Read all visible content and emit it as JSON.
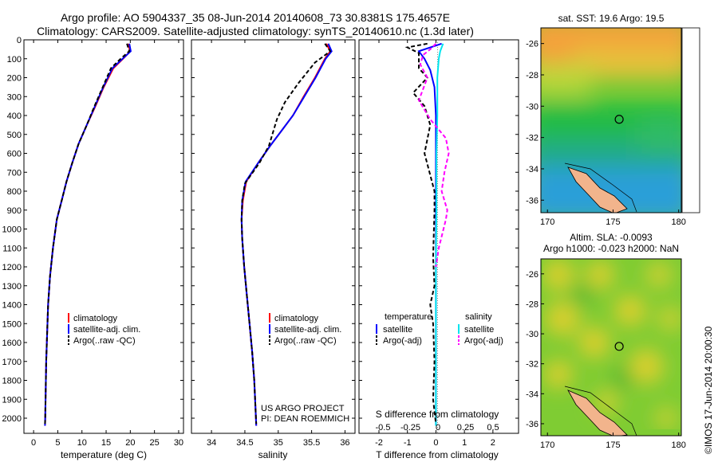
{
  "header": {
    "line1": "Argo profile: AO 5904337_35 08-Jun-2014 20140608_73 30.8381S 175.4657E",
    "line2": "Climatology: CARS2009. Satellite-adjusted climatology: synTS_20140610.nc (1.3d later)"
  },
  "chart_data": [
    {
      "type": "line",
      "name": "temperature",
      "xlabel": "temperature (deg C)",
      "ylabel": "",
      "xlim": [
        -2,
        31
      ],
      "ylim": [
        2080,
        0
      ],
      "xticks": [
        0,
        5,
        10,
        15,
        20,
        25,
        30
      ],
      "yticks": [
        0,
        100,
        200,
        300,
        400,
        500,
        600,
        700,
        800,
        900,
        1000,
        1100,
        1200,
        1300,
        1400,
        1500,
        1600,
        1700,
        1800,
        1900,
        2000
      ],
      "series": [
        {
          "name": "climatology",
          "color": "#ff0000",
          "style": "solid",
          "x": [
            19.5,
            20.0,
            18.5,
            16.5,
            14.5,
            12.8,
            11.0,
            9.3,
            8.0,
            6.8,
            5.8,
            4.8,
            4.0,
            3.4,
            3.0,
            2.8,
            2.6,
            2.5,
            2.4,
            2.35
          ],
          "y": [
            20,
            60,
            100,
            150,
            250,
            350,
            450,
            550,
            650,
            750,
            850,
            950,
            1100,
            1250,
            1400,
            1550,
            1700,
            1850,
            2000,
            2040
          ]
        },
        {
          "name": "satellite-adj. clim.",
          "color": "#0000ff",
          "style": "solid",
          "x": [
            19.8,
            20.1,
            18.4,
            16.3,
            14.4,
            12.7,
            11.0,
            9.3,
            8.0,
            6.8,
            5.8,
            4.8,
            4.0,
            3.4,
            3.0,
            2.8,
            2.6,
            2.5,
            2.4,
            2.35
          ],
          "y": [
            20,
            60,
            100,
            150,
            250,
            350,
            450,
            550,
            650,
            750,
            850,
            950,
            1100,
            1250,
            1400,
            1550,
            1700,
            1850,
            2000,
            2040
          ]
        },
        {
          "name": "Argo(..raw -QC)",
          "color": "#000000",
          "style": "dashed",
          "x": [
            19.3,
            19.8,
            18.0,
            16.0,
            14.3,
            12.6,
            11.0,
            9.3,
            8.0,
            6.8,
            5.8,
            4.8,
            4.0,
            3.4,
            3.0,
            2.8,
            2.6,
            2.5,
            2.4,
            2.35
          ],
          "y": [
            20,
            60,
            100,
            150,
            250,
            350,
            450,
            550,
            650,
            750,
            850,
            950,
            1100,
            1250,
            1400,
            1550,
            1700,
            1850,
            2000,
            2030
          ]
        }
      ],
      "legend": {
        "location": "lower-center",
        "entries": [
          "climatology",
          "satellite-adj. clim.",
          "Argo(..raw -QC)"
        ]
      }
    },
    {
      "type": "line",
      "name": "salinity",
      "xlabel": "salinity",
      "xlim": [
        33.7,
        36.15
      ],
      "ylim": [
        2080,
        0
      ],
      "xticks": [
        34,
        34.5,
        35,
        35.5,
        36
      ],
      "series": [
        {
          "name": "climatology",
          "color": "#ff0000",
          "style": "solid",
          "x": [
            35.72,
            35.78,
            35.7,
            35.55,
            35.38,
            35.22,
            35.05,
            34.88,
            34.7,
            34.52,
            34.47,
            34.45,
            34.46,
            34.49,
            34.53,
            34.57,
            34.61,
            34.64,
            34.66,
            34.67
          ],
          "y": [
            20,
            60,
            100,
            200,
            300,
            400,
            480,
            560,
            650,
            750,
            850,
            950,
            1050,
            1200,
            1350,
            1500,
            1650,
            1800,
            1950,
            2040
          ]
        },
        {
          "name": "satellite-adj. clim.",
          "color": "#0000ff",
          "style": "solid",
          "x": [
            35.75,
            35.8,
            35.71,
            35.56,
            35.39,
            35.22,
            35.05,
            34.88,
            34.7,
            34.51,
            34.46,
            34.45,
            34.46,
            34.49,
            34.53,
            34.57,
            34.61,
            34.64,
            34.66,
            34.67
          ],
          "y": [
            20,
            60,
            100,
            200,
            300,
            400,
            480,
            560,
            650,
            750,
            850,
            950,
            1050,
            1200,
            1350,
            1500,
            1650,
            1800,
            1950,
            2040
          ]
        },
        {
          "name": "Argo(..raw -QC)",
          "color": "#000000",
          "style": "dashed",
          "x": [
            35.7,
            35.78,
            35.55,
            35.3,
            35.1,
            34.98,
            34.92,
            34.86,
            34.72,
            34.5,
            34.46,
            34.45,
            34.46,
            34.49,
            34.53,
            34.57,
            34.61,
            34.64,
            34.66,
            34.67
          ],
          "y": [
            20,
            60,
            120,
            230,
            330,
            420,
            490,
            560,
            650,
            760,
            850,
            950,
            1050,
            1200,
            1350,
            1500,
            1650,
            1800,
            1950,
            2030
          ]
        }
      ],
      "legend": {
        "location": "lower-center",
        "entries": [
          "climatology",
          "satellite-adj. clim.",
          "Argo(..raw -QC)"
        ]
      },
      "annotations": [
        "US ARGO PROJECT",
        "PI: DEAN ROEMMICH"
      ]
    },
    {
      "type": "line",
      "name": "difference from climatology",
      "xlabel": "T difference from climatology",
      "xlabel_top": "S difference from climatology",
      "xlim": [
        -2.7,
        2.9
      ],
      "ylim": [
        2080,
        0
      ],
      "xticks": [
        -2,
        -1,
        0,
        1,
        2
      ],
      "xticks_top": [
        -0.5,
        -0.25,
        0,
        0.25,
        0.5
      ],
      "series": [
        {
          "name": "temperature satellite",
          "color": "#0000ff",
          "style": "solid",
          "x": [
            0.2,
            -0.6,
            -0.4,
            -0.2,
            -0.05,
            0.0,
            0.0,
            0.0,
            0.0,
            0.0
          ],
          "y": [
            20,
            60,
            100,
            160,
            250,
            400,
            600,
            900,
            1500,
            2040
          ]
        },
        {
          "name": "salinity satellite",
          "color": "#00e5ee",
          "style": "solid",
          "x": [
            0.25,
            0.15,
            0.1,
            0.05,
            0.05,
            0.02,
            0.02,
            0.0,
            0.0,
            0.0
          ],
          "y": [
            20,
            60,
            100,
            200,
            400,
            600,
            900,
            1200,
            1600,
            2040
          ]
        },
        {
          "name": "temperature Argo(-adj)",
          "color": "#000000",
          "style": "dashed",
          "x": [
            -0.3,
            -1.0,
            -0.6,
            -0.6,
            -0.3,
            -0.8,
            -0.4,
            -0.2,
            -0.4,
            -0.05,
            -0.05,
            -0.1,
            -0.05,
            -0.2,
            -0.1,
            -0.05,
            -0.1,
            0.0
          ],
          "y": [
            20,
            40,
            70,
            150,
            200,
            280,
            350,
            450,
            600,
            800,
            900,
            1150,
            1300,
            1400,
            1500,
            1700,
            1900,
            2030
          ]
        },
        {
          "name": "salinity Argo(-adj)",
          "color": "#ff00ff",
          "style": "dashed",
          "x": [
            0.0,
            -0.2,
            -0.45,
            -0.55,
            -0.3,
            -0.6,
            -0.2,
            0.35,
            0.45,
            0.3,
            0.2,
            0.4,
            0.35,
            0.1,
            0.0
          ],
          "y": [
            20,
            50,
            80,
            130,
            200,
            320,
            420,
            520,
            600,
            700,
            800,
            900,
            950,
            1100,
            1200
          ]
        }
      ],
      "legend": {
        "location": "lower-center",
        "temperature_title": "temperature",
        "salinity_title": "salinity",
        "entries": [
          "satellite",
          "Argo(-adj)",
          "satellite",
          "Argo(-adj)"
        ]
      }
    },
    {
      "type": "heatmap",
      "name": "sat SST map",
      "title": "sat. SST: 19.6 Argo: 19.5",
      "xlim": [
        169.5,
        180.2
      ],
      "ylim": [
        -36.8,
        -25
      ],
      "xticks": [
        170,
        175,
        180
      ],
      "yticks": [
        -26,
        -28,
        -30,
        -32,
        -34,
        -36
      ],
      "marker": {
        "lon": 175.4657,
        "lat": -30.8381
      }
    },
    {
      "type": "heatmap",
      "name": "SLA map",
      "title": "Altim. SLA: -0.0093",
      "subtitle": "Argo h1000: -0.023 h2000: NaN",
      "xlim": [
        169.5,
        180.2
      ],
      "ylim": [
        -36.8,
        -25
      ],
      "xticks": [
        170,
        175,
        180
      ],
      "yticks": [
        -26,
        -28,
        -30,
        -32,
        -34,
        -36
      ],
      "marker": {
        "lon": 175.4657,
        "lat": -30.8381
      }
    }
  ],
  "credit": "©IMOS 17-Jun-2014 20:00:30",
  "colors": {
    "climatology": "#ff0000",
    "satellite": "#0000ff",
    "argo": "#000000",
    "sal_satellite": "#00e5ee",
    "sal_argo": "#ff00ff",
    "land": "#f2b48c"
  }
}
